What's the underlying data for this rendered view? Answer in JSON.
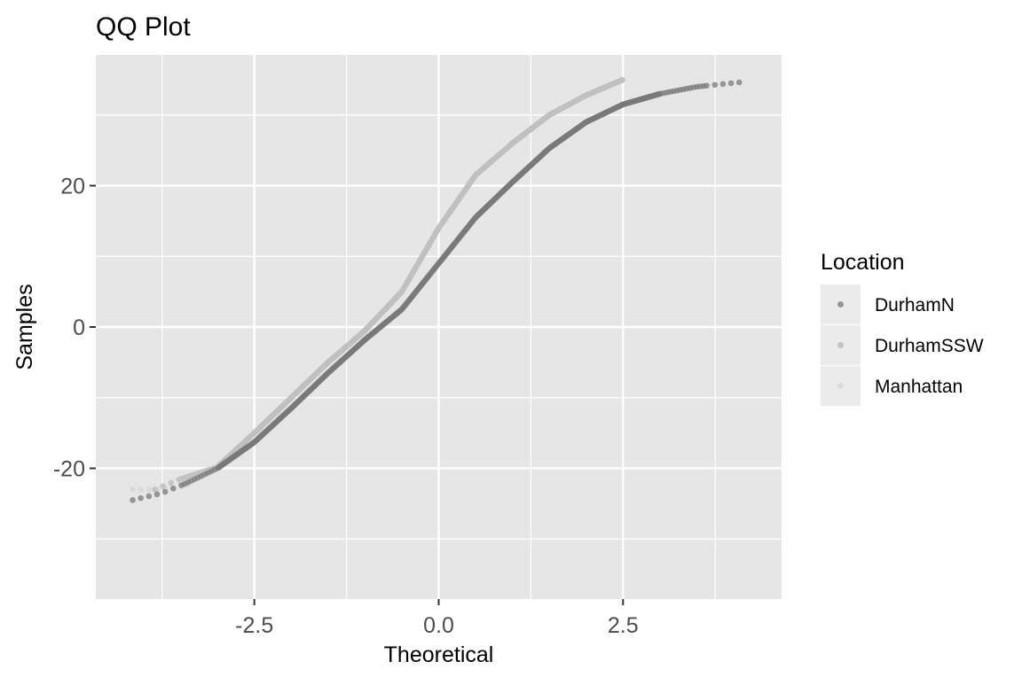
{
  "chart_data": {
    "type": "scatter",
    "title": "QQ Plot",
    "xlabel": "Theoretical",
    "ylabel": "Samples",
    "xlim": [
      -4.65,
      4.65
    ],
    "ylim": [
      -38.5,
      38.5
    ],
    "x_ticks": [
      -2.5,
      0.0,
      2.5
    ],
    "x_tick_labels": [
      "-2.5",
      "0.0",
      "2.5"
    ],
    "y_ticks": [
      -20,
      0,
      20
    ],
    "y_tick_labels": [
      "-20",
      "0",
      "20"
    ],
    "grid": true,
    "legend": {
      "title": "Location",
      "placement": "right"
    },
    "series": [
      {
        "name": "DurhamN",
        "color": "#7a7a7a",
        "opacity": 0.75,
        "theoretical_range": [
          -4.15,
          4.15
        ],
        "quantile_curve": [
          [
            -4.15,
            -24.5
          ],
          [
            -3.75,
            -23.5
          ],
          [
            -3.4,
            -22.0
          ],
          [
            -3.0,
            -20.0
          ],
          [
            -2.5,
            -16.3
          ],
          [
            -2.0,
            -11.5
          ],
          [
            -1.5,
            -6.5
          ],
          [
            -1.0,
            -1.8
          ],
          [
            -0.5,
            2.5
          ],
          [
            0.0,
            9.0
          ],
          [
            0.5,
            15.5
          ],
          [
            1.0,
            20.5
          ],
          [
            1.5,
            25.3
          ],
          [
            2.0,
            29.0
          ],
          [
            2.5,
            31.5
          ],
          [
            3.0,
            33.0
          ],
          [
            3.5,
            34.0
          ],
          [
            4.15,
            34.7
          ]
        ]
      },
      {
        "name": "DurhamSSW",
        "color": "#c0c0c0",
        "opacity": 0.9,
        "theoretical_range": [
          -3.85,
          2.5
        ],
        "quantile_curve": [
          [
            -3.85,
            -23.0
          ],
          [
            -3.5,
            -21.5
          ],
          [
            -3.0,
            -19.8
          ],
          [
            -2.5,
            -15.0
          ],
          [
            -2.0,
            -10.0
          ],
          [
            -1.5,
            -5.0
          ],
          [
            -1.0,
            -0.5
          ],
          [
            -0.5,
            5.0
          ],
          [
            0.0,
            14.0
          ],
          [
            0.5,
            21.5
          ],
          [
            1.0,
            26.0
          ],
          [
            1.5,
            30.0
          ],
          [
            2.0,
            32.8
          ],
          [
            2.5,
            35.0
          ]
        ]
      },
      {
        "name": "Manhattan",
        "color": "#d6d6d6",
        "opacity": 0.75,
        "theoretical_range": [
          -4.15,
          -3.4
        ],
        "quantile_curve": [
          [
            -4.15,
            -23.0
          ],
          [
            -3.85,
            -23.0
          ],
          [
            -3.6,
            -22.8
          ],
          [
            -3.4,
            -22.3
          ]
        ]
      }
    ]
  }
}
